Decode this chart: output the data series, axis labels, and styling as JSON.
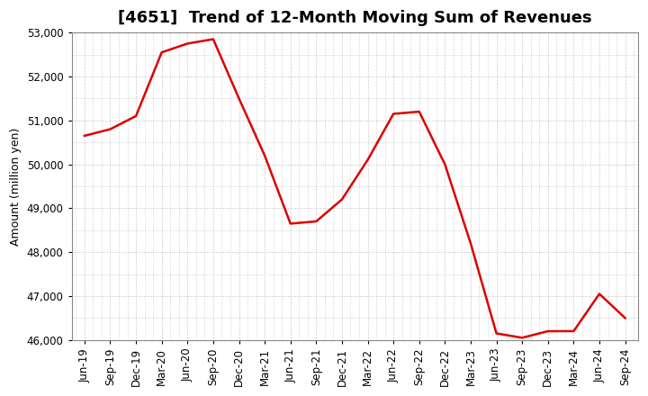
{
  "title": "[4651]  Trend of 12-Month Moving Sum of Revenues",
  "ylabel": "Amount (million yen)",
  "line_color": "#dd0000",
  "background_color": "#ffffff",
  "plot_bg_color": "#ffffff",
  "grid_color": "#bbbbbb",
  "ylim": [
    46000,
    53000
  ],
  "yticks": [
    46000,
    47000,
    48000,
    49000,
    50000,
    51000,
    52000,
    53000
  ],
  "x_labels": [
    "Jun-19",
    "Sep-19",
    "Dec-19",
    "Mar-20",
    "Jun-20",
    "Sep-20",
    "Dec-20",
    "Mar-21",
    "Jun-21",
    "Sep-21",
    "Dec-21",
    "Mar-22",
    "Jun-22",
    "Sep-22",
    "Dec-22",
    "Mar-23",
    "Jun-23",
    "Sep-23",
    "Dec-23",
    "Mar-24",
    "Jun-24",
    "Sep-24"
  ],
  "values": [
    50650,
    50800,
    51100,
    52550,
    52750,
    52850,
    51500,
    50200,
    48650,
    48700,
    49200,
    50100,
    51150,
    51200,
    50000,
    48200,
    46150,
    46050,
    46200,
    46200,
    47050,
    46500
  ],
  "title_fontsize": 13,
  "ylabel_fontsize": 9,
  "tick_fontsize": 8.5
}
